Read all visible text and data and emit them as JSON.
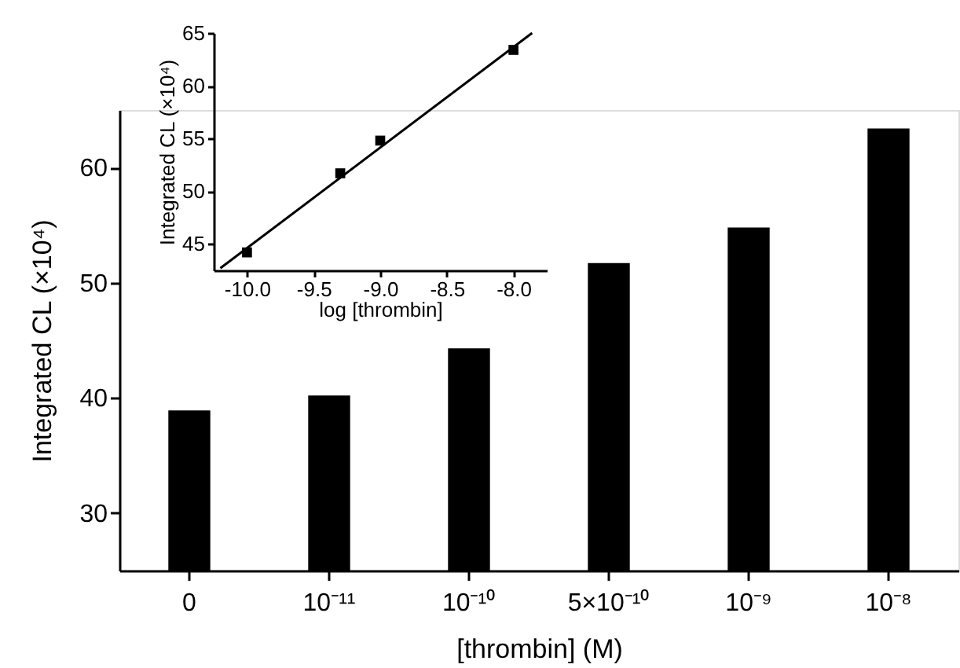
{
  "chart_data": [
    {
      "type": "scatter",
      "xlabel": "log [thrombin]",
      "ylabel": "Integrated CL (×10⁴)",
      "series": [
        {
          "type": "scatter",
          "marker": "square",
          "color": "#000000",
          "x": [
            -10.0,
            -9.3,
            -9.0,
            -8.0
          ],
          "values": [
            44.2,
            51.7,
            54.8,
            63.4
          ]
        },
        {
          "type": "line",
          "line_style": "solid",
          "color": "#000000",
          "x": [
            -10.2,
            -7.86
          ],
          "values": [
            42.7,
            65.0
          ]
        }
      ],
      "xlim": [
        -10.25,
        -7.75
      ],
      "xticks": [
        {
          "value": -10,
          "label": "-10.0"
        },
        {
          "value": -9.5,
          "label": "-9.5"
        },
        {
          "value": -9,
          "label": "-9.0"
        },
        {
          "value": -8.5,
          "label": "-8.5"
        },
        {
          "value": -8,
          "label": "-8.0"
        }
      ],
      "ylim": [
        42.5,
        65
      ],
      "yticks": [
        45,
        50,
        55,
        60,
        65
      ],
      "grid": false
    },
    {
      "type": "bar",
      "xlabel": "[thrombin] (M)",
      "ylabel": "Integrated CL (×10⁴)",
      "categories": [
        "0",
        "10⁻¹¹",
        "10⁻¹⁰",
        "5×10⁻¹⁰",
        "10⁻⁹",
        "10⁻⁸"
      ],
      "values": [
        38.9,
        40.2,
        44.3,
        51.7,
        54.8,
        63.4
      ],
      "color": "#000000",
      "ylim": [
        25,
        65
      ],
      "yticks": [
        30,
        40,
        50,
        60
      ],
      "grid": false
    }
  ]
}
